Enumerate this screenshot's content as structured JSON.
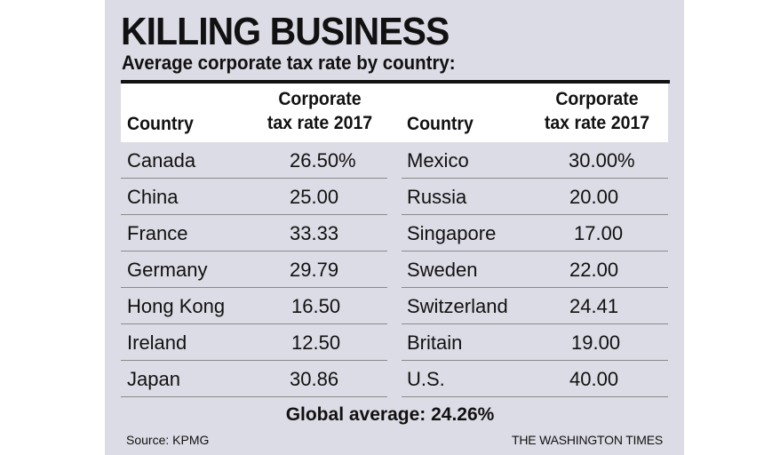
{
  "title": "KILLING BUSINESS",
  "subtitle": "Average corporate tax rate by country:",
  "headers": {
    "country": "Country",
    "rate_line1": "Corporate",
    "rate_line2": "tax rate 2017"
  },
  "left_rows": [
    {
      "country": "Canada",
      "rate": "26.50%"
    },
    {
      "country": "China",
      "rate": "25.00"
    },
    {
      "country": "France",
      "rate": "33.33"
    },
    {
      "country": "Germany",
      "rate": "29.79"
    },
    {
      "country": "Hong Kong",
      "rate": "16.50"
    },
    {
      "country": "Ireland",
      "rate": "12.50"
    },
    {
      "country": "Japan",
      "rate": "30.86"
    }
  ],
  "right_rows": [
    {
      "country": "Mexico",
      "rate": "30.00%"
    },
    {
      "country": "Russia",
      "rate": "20.00"
    },
    {
      "country": "Singapore",
      "rate": "17.00"
    },
    {
      "country": "Sweden",
      "rate": "22.00"
    },
    {
      "country": "Switzerland",
      "rate": "24.41"
    },
    {
      "country": "Britain",
      "rate": "19.00"
    },
    {
      "country": "U.S.",
      "rate": "40.00"
    }
  ],
  "global_average": "Global average:  24.26%",
  "source": "Source: KPMG",
  "credit": "THE WASHINGTON TIMES"
}
